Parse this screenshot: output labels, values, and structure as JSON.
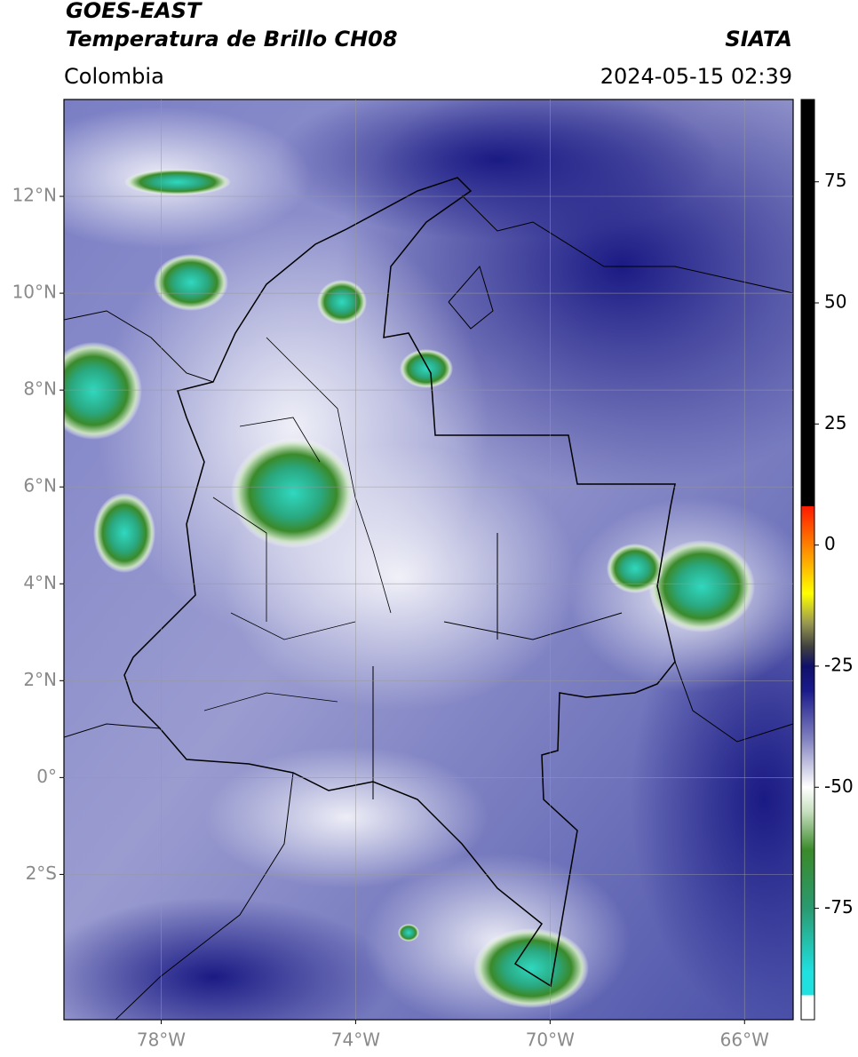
{
  "chart_data": {
    "type": "map",
    "title": "GOES-EAST",
    "subtitle": "Temperatura de Brillo CH08",
    "source": "SIATA",
    "region": "Colombia",
    "datetime": "2024-05-15 02:39",
    "xlim": [
      -80,
      -65
    ],
    "ylim": [
      -5,
      14
    ],
    "xticks": [
      {
        "value": -78,
        "label": "78°W"
      },
      {
        "value": -74,
        "label": "74°W"
      },
      {
        "value": -70,
        "label": "70°W"
      },
      {
        "value": -66,
        "label": "66°W"
      }
    ],
    "yticks": [
      {
        "value": 12,
        "label": "12°N"
      },
      {
        "value": 10,
        "label": "10°N"
      },
      {
        "value": 8,
        "label": "8°N"
      },
      {
        "value": 6,
        "label": "6°N"
      },
      {
        "value": 4,
        "label": "4°N"
      },
      {
        "value": 2,
        "label": "2°N"
      },
      {
        "value": 0,
        "label": "0°"
      },
      {
        "value": -2,
        "label": "2°S"
      }
    ],
    "grid": true,
    "colorbar": {
      "lim": [
        -98,
        92
      ],
      "ticks": [
        75,
        50,
        25,
        0,
        -25,
        -50,
        -75
      ],
      "stops": [
        {
          "value": 92,
          "color": "#000000"
        },
        {
          "value": 8,
          "color": "#000000"
        },
        {
          "value": 8,
          "color": "#ff1a00"
        },
        {
          "value": 0,
          "color": "#ff8000"
        },
        {
          "value": -10,
          "color": "#ffff00"
        },
        {
          "value": -16,
          "color": "#9a9a50"
        },
        {
          "value": -21,
          "color": "#404040"
        },
        {
          "value": -25,
          "color": "#10106a"
        },
        {
          "value": -30,
          "color": "#1a1a8c"
        },
        {
          "value": -40,
          "color": "#8080c0"
        },
        {
          "value": -50,
          "color": "#ffffff"
        },
        {
          "value": -55,
          "color": "#c8e0c0"
        },
        {
          "value": -63,
          "color": "#3a8a2a"
        },
        {
          "value": -75,
          "color": "#2a9a70"
        },
        {
          "value": -88,
          "color": "#20e0e0"
        },
        {
          "value": -93,
          "color": "#20e0e0"
        },
        {
          "value": -93,
          "color": "#ffffff"
        },
        {
          "value": -98,
          "color": "#ffffff"
        }
      ]
    }
  }
}
